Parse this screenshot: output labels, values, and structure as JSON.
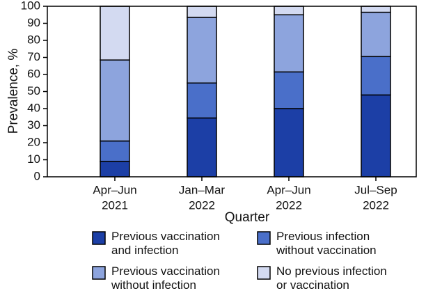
{
  "chart_data": {
    "type": "stacked_bar",
    "x_label": "Quarter",
    "y_label": "Prevalence, %",
    "categories": [
      [
        "Apr–Jun",
        "2021"
      ],
      [
        "Jan–Mar",
        "2022"
      ],
      [
        "Apr–Jun",
        "2022"
      ],
      [
        "Jul–Sep",
        "2022"
      ]
    ],
    "series": [
      {
        "name": "Previous vaccination and infection",
        "color": "#1c3fa6",
        "values": [
          9,
          34.5,
          40,
          48
        ]
      },
      {
        "name": "Previous infection without vaccination",
        "color": "#4a6fc9",
        "values": [
          12,
          20.5,
          21.5,
          22.5
        ]
      },
      {
        "name": "Previous vaccination without infection",
        "color": "#8da4dd",
        "values": [
          47.5,
          38.5,
          33.5,
          26
        ]
      },
      {
        "name": "No previous infection or vaccination",
        "color": "#d3daf1",
        "values": [
          31.5,
          6.5,
          5,
          3.5
        ]
      }
    ],
    "ylim": [
      0,
      100
    ],
    "yticks": [
      0,
      10,
      20,
      30,
      40,
      50,
      60,
      70,
      80,
      90,
      100
    ]
  }
}
